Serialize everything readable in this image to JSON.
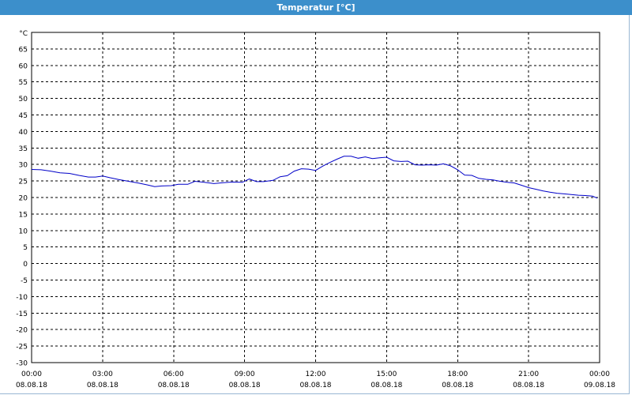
{
  "window": {
    "title": "Temperatur [°C]"
  },
  "colors": {
    "titlebar": "#3c8fcb",
    "series": "#0000c8",
    "grid": "#000000",
    "axis": "#000000"
  },
  "chart_data": {
    "type": "line",
    "title": "Temperatur [°C]",
    "ylabel": "°C",
    "xlabel": "",
    "ylim": [
      -30,
      70
    ],
    "xlim": [
      0,
      24
    ],
    "grid": true,
    "grid_style": "dashed",
    "y_ticks": [
      65,
      60,
      55,
      50,
      45,
      40,
      35,
      30,
      25,
      20,
      15,
      10,
      5,
      0,
      -5,
      -10,
      -15,
      -20,
      -25,
      -30
    ],
    "x_ticks": [
      {
        "x": 0,
        "time": "00:00",
        "date": "08.08.18"
      },
      {
        "x": 3,
        "time": "03:00",
        "date": "08.08.18"
      },
      {
        "x": 6,
        "time": "06:00",
        "date": "08.08.18"
      },
      {
        "x": 9,
        "time": "09:00",
        "date": "08.08.18"
      },
      {
        "x": 12,
        "time": "12:00",
        "date": "08.08.18"
      },
      {
        "x": 15,
        "time": "15:00",
        "date": "08.08.18"
      },
      {
        "x": 18,
        "time": "18:00",
        "date": "08.08.18"
      },
      {
        "x": 21,
        "time": "21:00",
        "date": "08.08.18"
      },
      {
        "x": 24,
        "time": "00:00",
        "date": "09.08.18"
      }
    ],
    "series": [
      {
        "x": [
          0,
          0.4,
          0.8,
          1.2,
          1.6,
          2.0,
          2.4,
          2.7,
          3.0,
          3.3,
          3.7,
          4.1,
          4.5,
          4.9,
          5.2,
          5.5,
          5.9,
          6.2,
          6.6,
          6.9,
          7.3,
          7.7,
          8.1,
          8.5,
          8.9,
          9.2,
          9.5,
          9.8,
          10.2,
          10.5,
          10.8,
          11.1,
          11.4,
          11.7,
          12.0,
          12.3,
          12.6,
          12.9,
          13.2,
          13.5,
          13.8,
          14.1,
          14.4,
          14.7,
          15.0,
          15.3,
          15.6,
          15.9,
          16.2,
          16.5,
          16.8,
          17.1,
          17.4,
          17.7,
          18.0,
          18.3,
          18.6,
          18.9,
          19.2,
          19.5,
          19.8,
          20.1,
          20.4,
          20.7,
          21.0,
          21.3,
          21.6,
          21.9,
          22.2,
          22.5,
          22.8,
          23.1,
          23.4,
          23.7,
          23.9
        ],
        "y": [
          28.5,
          28.4,
          28.0,
          27.5,
          27.3,
          26.7,
          26.2,
          26.2,
          26.5,
          26.0,
          25.4,
          24.9,
          24.4,
          23.8,
          23.3,
          23.5,
          23.6,
          24.0,
          24.0,
          24.9,
          24.6,
          24.2,
          24.5,
          24.7,
          24.6,
          25.6,
          24.8,
          24.8,
          25.2,
          26.3,
          26.6,
          28.0,
          28.7,
          28.6,
          28.2,
          29.5,
          30.6,
          31.6,
          32.5,
          32.5,
          31.9,
          32.3,
          31.8,
          32.0,
          32.2,
          31.1,
          30.9,
          31.0,
          29.9,
          29.8,
          29.9,
          29.8,
          30.2,
          29.6,
          28.4,
          26.8,
          26.7,
          25.8,
          25.5,
          25.3,
          24.9,
          24.6,
          24.4,
          23.7,
          23.0,
          22.5,
          22.0,
          21.6,
          21.3,
          21.1,
          20.9,
          20.7,
          20.6,
          20.4,
          19.8
        ]
      }
    ]
  }
}
